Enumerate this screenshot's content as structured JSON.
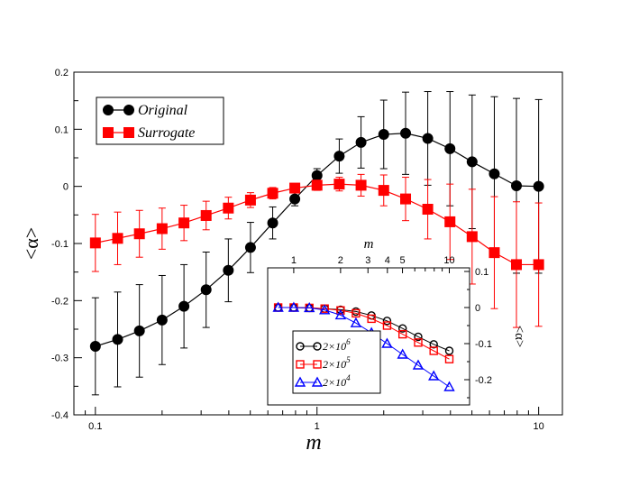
{
  "chart_data": [
    {
      "type": "line",
      "title": "",
      "xlabel": "m",
      "ylabel": "<α>",
      "xscale": "log",
      "xlim": [
        0.08,
        12.8
      ],
      "ylim": [
        -0.4,
        0.2
      ],
      "xticks": [
        0.1,
        1,
        10
      ],
      "xtick_labels": [
        "0.1",
        "1",
        "10"
      ],
      "yticks": [
        -0.4,
        -0.3,
        -0.2,
        -0.1,
        0,
        0.1,
        0.2
      ],
      "ytick_labels": [
        "-0.4",
        "-0.3",
        "-0.2",
        "-0.1",
        "0",
        "0.1",
        "0.2"
      ],
      "legend_position": "top-left",
      "series": [
        {
          "name": "Original",
          "color": "#000000",
          "marker": "circle",
          "x": [
            0.1,
            0.126,
            0.158,
            0.2,
            0.251,
            0.316,
            0.398,
            0.501,
            0.631,
            0.794,
            1.0,
            1.26,
            1.58,
            2.0,
            2.51,
            3.16,
            3.98,
            5.01,
            6.31,
            7.94,
            10.0
          ],
          "y": [
            -0.28,
            -0.268,
            -0.253,
            -0.234,
            -0.21,
            -0.181,
            -0.147,
            -0.107,
            -0.064,
            -0.022,
            0.019,
            0.053,
            0.077,
            0.091,
            0.093,
            0.084,
            0.066,
            0.043,
            0.022,
            0.001,
            0.0
          ],
          "err": [
            0.085,
            0.083,
            0.081,
            0.078,
            0.073,
            0.066,
            0.055,
            0.044,
            0.028,
            0.012,
            0.012,
            0.03,
            0.045,
            0.06,
            0.072,
            0.082,
            0.1,
            0.117,
            0.135,
            0.153,
            0.152
          ]
        },
        {
          "name": "Surrogate",
          "color": "#ff0000",
          "marker": "square",
          "x": [
            0.1,
            0.126,
            0.158,
            0.2,
            0.251,
            0.316,
            0.398,
            0.501,
            0.631,
            0.794,
            1.0,
            1.26,
            1.58,
            2.0,
            2.51,
            3.16,
            3.98,
            5.01,
            6.31,
            7.94,
            10.0
          ],
          "y": [
            -0.099,
            -0.091,
            -0.083,
            -0.074,
            -0.064,
            -0.051,
            -0.038,
            -0.024,
            -0.012,
            -0.003,
            0.002,
            0.004,
            0.002,
            -0.007,
            -0.022,
            -0.04,
            -0.062,
            -0.088,
            -0.116,
            -0.137,
            -0.137
          ],
          "err": [
            0.05,
            0.046,
            0.041,
            0.036,
            0.031,
            0.025,
            0.019,
            0.013,
            0.01,
            0.008,
            0.009,
            0.012,
            0.019,
            0.027,
            0.038,
            0.052,
            0.066,
            0.083,
            0.098,
            0.11,
            0.108
          ]
        }
      ]
    },
    {
      "type": "line",
      "title": "",
      "xlabel": "m",
      "ylabel": "<α>",
      "xscale": "log",
      "xlim": [
        0.68,
        13.5
      ],
      "ylim": [
        -0.27,
        0.11
      ],
      "xticks": [
        1,
        2,
        3,
        4,
        5,
        10
      ],
      "xtick_labels": [
        "1",
        "2",
        "3",
        "4",
        "5",
        "10"
      ],
      "yticks": [
        -0.2,
        -0.1,
        0,
        0.1
      ],
      "ytick_labels": [
        "-0.2",
        "-0.1",
        "0",
        "0.1"
      ],
      "legend_position": "bottom-left",
      "series": [
        {
          "name": "2×10^6",
          "label_base": "2×10",
          "label_exp": "6",
          "color": "#000000",
          "marker": "circle-open",
          "x": [
            0.794,
            1.0,
            1.26,
            1.58,
            2.0,
            2.51,
            3.16,
            3.98,
            5.01,
            6.31,
            7.94,
            10.0
          ],
          "y": [
            0.0,
            0.0,
            -0.001,
            -0.003,
            -0.006,
            -0.011,
            -0.022,
            -0.037,
            -0.058,
            -0.081,
            -0.102,
            -0.12
          ]
        },
        {
          "name": "2×10^5",
          "label_base": "2×10",
          "label_exp": "5",
          "color": "#ff0000",
          "marker": "square-open",
          "x": [
            0.794,
            1.0,
            1.26,
            1.58,
            2.0,
            2.51,
            3.16,
            3.98,
            5.01,
            6.31,
            7.94,
            10.0
          ],
          "y": [
            0.0,
            0.0,
            -0.001,
            -0.003,
            -0.008,
            -0.016,
            -0.031,
            -0.05,
            -0.074,
            -0.097,
            -0.12,
            -0.143
          ]
        },
        {
          "name": "2×10^4",
          "label_base": "2×10",
          "label_exp": "4",
          "color": "#0000ff",
          "marker": "triangle-open",
          "x": [
            0.794,
            1.0,
            1.26,
            1.58,
            2.0,
            2.51,
            3.16,
            3.98,
            5.01,
            6.31,
            7.94,
            10.0
          ],
          "y": [
            0.0,
            0.0,
            -0.001,
            -0.007,
            -0.021,
            -0.043,
            -0.07,
            -0.1,
            -0.13,
            -0.16,
            -0.19,
            -0.22
          ]
        }
      ]
    }
  ]
}
